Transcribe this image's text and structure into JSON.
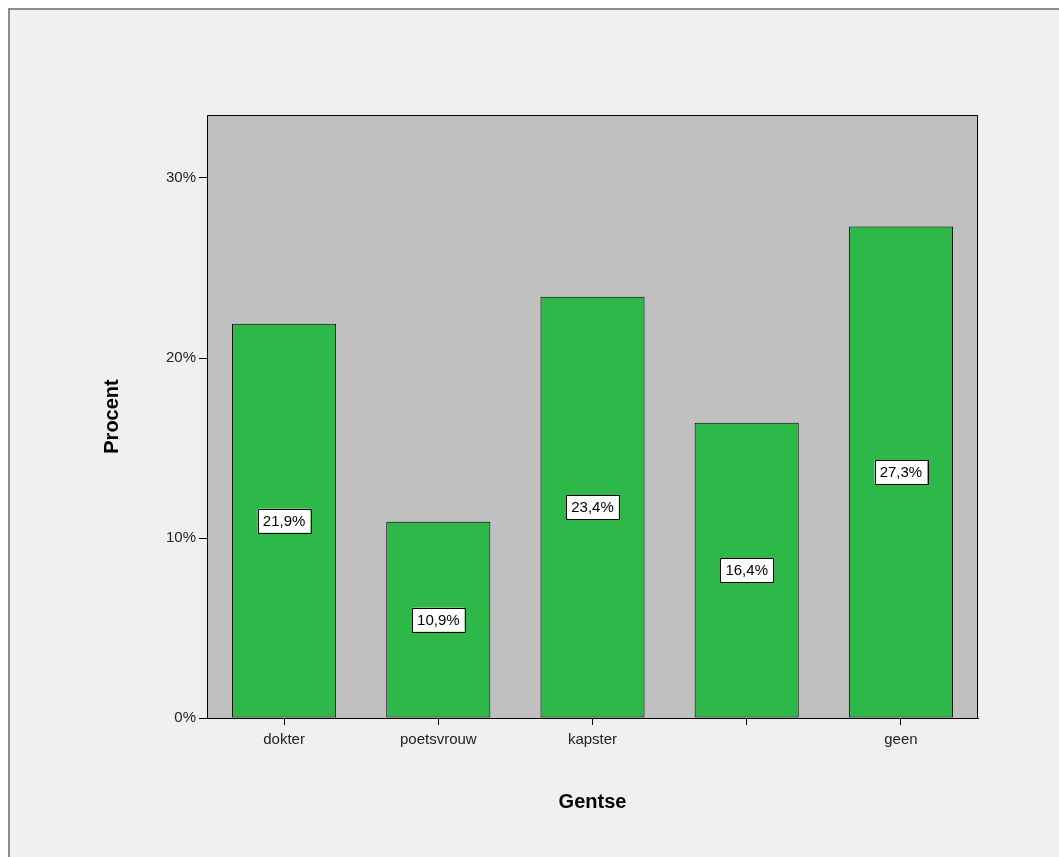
{
  "chart_data": {
    "type": "bar",
    "xlabel": "Gentse",
    "ylabel": "Procent",
    "categories": [
      "dokter",
      "poetsvrouw",
      "kapster",
      null,
      "geen"
    ],
    "values": [
      21.9,
      10.9,
      23.4,
      16.4,
      27.3
    ],
    "color": "#2eb84a",
    "value_labels": [
      "21,9%",
      "10,9%",
      "23,4%",
      "16,4%",
      "27,3%"
    ],
    "ylim": [
      0,
      33.5
    ],
    "yticks": [
      {
        "value": 0,
        "label": "0%"
      },
      {
        "value": 10,
        "label": "10%"
      },
      {
        "value": 20,
        "label": "20%"
      },
      {
        "value": 30,
        "label": "30%"
      }
    ]
  }
}
